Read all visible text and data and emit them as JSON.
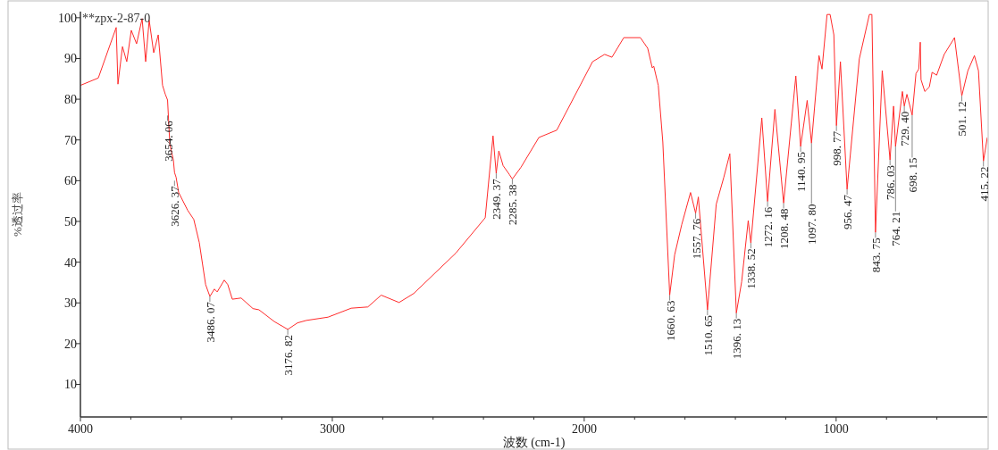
{
  "chart_data": {
    "type": "line",
    "title": "**zpx-2-87-0",
    "xlabel": "波数 (cm-1)",
    "ylabel": "%透过率",
    "xlim": [
      4000,
      400
    ],
    "ylim": [
      2,
      101.5
    ],
    "xticks": [
      4000,
      {
        "value": 3800,
        "label": null
      },
      {
        "value": 3600,
        "label": null
      },
      {
        "value": 3400,
        "label": null
      },
      {
        "value": 3200,
        "label": null
      },
      3000,
      {
        "value": 2800,
        "label": null
      },
      {
        "value": 2600,
        "label": null
      },
      {
        "value": 2400,
        "label": null
      },
      {
        "value": 2200,
        "label": null
      },
      2000,
      {
        "value": 1800,
        "label": null
      },
      {
        "value": 1600,
        "label": null
      },
      {
        "value": 1400,
        "label": null
      },
      {
        "value": 1200,
        "label": null
      },
      1000,
      {
        "value": 800,
        "label": null
      },
      {
        "value": 600,
        "label": null
      }
    ],
    "yticks": [
      10,
      20,
      30,
      40,
      50,
      60,
      70,
      80,
      90,
      100
    ],
    "grid": false,
    "marker": "none",
    "line_style": "solid",
    "series": [
      {
        "color": "#ff2a2a",
        "x": [
          4000,
          3929,
          3858,
          3851,
          3833,
          3816,
          3798,
          3777,
          3755,
          3741,
          3727,
          3709,
          3691,
          3674,
          3663,
          3654.06,
          3645,
          3631,
          3626.37,
          3620,
          3610,
          3574,
          3550,
          3528,
          3503,
          3486.07,
          3468,
          3457,
          3429,
          3415,
          3397,
          3362,
          3315,
          3291,
          3230,
          3176.82,
          3138,
          3103,
          3017,
          2925,
          2859,
          2806,
          2735,
          2677,
          2510,
          2393,
          2362,
          2349.37,
          2339,
          2322,
          2297,
          2285.38,
          2251,
          2180,
          2109,
          1967,
          1919,
          1890,
          1843,
          1777,
          1748,
          1730,
          1724,
          1706,
          1688,
          1660.63,
          1641,
          1613,
          1578,
          1557.76,
          1547,
          1510.65,
          1476,
          1446,
          1422,
          1396.13,
          1375,
          1349,
          1338.52,
          1295,
          1272.16,
          1243,
          1208.48,
          1160,
          1140.95,
          1115,
          1097.8,
          1068,
          1056,
          1036,
          1024,
          1009,
          998.77,
          983,
          956.47,
          908,
          868,
          858,
          843.75,
          817,
          786.03,
          772,
          764.21,
          737,
          729.4,
          719,
          698.15,
          683,
          672,
          666,
          663,
          648,
          630,
          619,
          601,
          571,
          530,
          501.12,
          477,
          451,
          435,
          415.22,
          400
        ],
        "values": [
          83.4,
          85.2,
          97.6,
          83.7,
          92.9,
          89.2,
          96.9,
          93.6,
          99.8,
          89.2,
          99.4,
          91.4,
          95.8,
          83.4,
          81.2,
          79.8,
          68.9,
          65.1,
          62,
          60.8,
          57.1,
          52.7,
          50.5,
          44.8,
          34.5,
          31.6,
          33.4,
          32.7,
          35.6,
          34.5,
          30.9,
          31.2,
          28.6,
          28.3,
          25.4,
          23.5,
          25.1,
          25.7,
          26.5,
          28.7,
          29,
          31.9,
          30.1,
          32.3,
          42.2,
          50.9,
          71,
          61.8,
          67.3,
          63.7,
          61.5,
          60.4,
          63.3,
          70.6,
          72.4,
          89.2,
          91,
          90.3,
          95.1,
          95.1,
          92.5,
          87.7,
          88.1,
          83.4,
          69.5,
          31.9,
          41.8,
          49.2,
          57.1,
          52,
          56,
          28.3,
          54.2,
          60.8,
          66.6,
          27.5,
          35.2,
          50.2,
          44.7,
          75.4,
          54.9,
          77.5,
          54.5,
          85.7,
          68.4,
          79.7,
          69.2,
          90.7,
          87.4,
          100.8,
          100.8,
          95.8,
          73.5,
          89.2,
          57.9,
          89.9,
          100.8,
          100.8,
          47.3,
          87,
          65.1,
          78.3,
          68.4,
          81.9,
          78.3,
          81.2,
          76.1,
          86.3,
          87.4,
          94,
          84.8,
          81.9,
          83,
          86.6,
          85.9,
          91,
          95.1,
          80.8,
          87,
          90.7,
          87,
          64.8,
          70.6
        ]
      }
    ],
    "annotations": [
      {
        "text": "3654. 06",
        "x": 3654.06,
        "y": 76
      },
      {
        "text": "3626. 37",
        "x": 3626.37,
        "y": 60
      },
      {
        "text": "3486. 07",
        "x": 3486.07,
        "y": 31.6
      },
      {
        "text": "3176. 82",
        "x": 3176.82,
        "y": 23.5
      },
      {
        "text": "2349. 37",
        "x": 2349.37,
        "y": 61.8
      },
      {
        "text": "2285. 38",
        "x": 2285.38,
        "y": 60.4
      },
      {
        "text": "1660. 63",
        "x": 1660.63,
        "y": 31.9
      },
      {
        "text": "1557. 76",
        "x": 1557.76,
        "y": 52
      },
      {
        "text": "1510. 65",
        "x": 1510.65,
        "y": 28.3
      },
      {
        "text": "1396. 13",
        "x": 1396.13,
        "y": 27.5
      },
      {
        "text": "1338. 52",
        "x": 1338.52,
        "y": 44.7
      },
      {
        "text": "1272. 16",
        "x": 1272.16,
        "y": 54.9
      },
      {
        "text": "1208. 48",
        "x": 1208.48,
        "y": 54.5
      },
      {
        "text": "1140. 95",
        "x": 1140.95,
        "y": 68.4
      },
      {
        "text": "1097. 80",
        "x": 1097.8,
        "y": 69.2
      },
      {
        "text": "998. 77",
        "x": 998.77,
        "y": 73.5
      },
      {
        "text": "956. 47",
        "x": 956.47,
        "y": 57.9
      },
      {
        "text": "843. 75",
        "x": 843.75,
        "y": 47.3
      },
      {
        "text": "786. 03",
        "x": 786.03,
        "y": 65.1
      },
      {
        "text": "764. 21",
        "x": 764.21,
        "y": 68.4
      },
      {
        "text": "729. 40",
        "x": 729.4,
        "y": 78.3
      },
      {
        "text": "698. 15",
        "x": 698.15,
        "y": 76.1
      },
      {
        "text": "501. 12",
        "x": 501.12,
        "y": 80.8
      },
      {
        "text": "415. 22",
        "x": 415.22,
        "y": 64.8
      }
    ]
  }
}
